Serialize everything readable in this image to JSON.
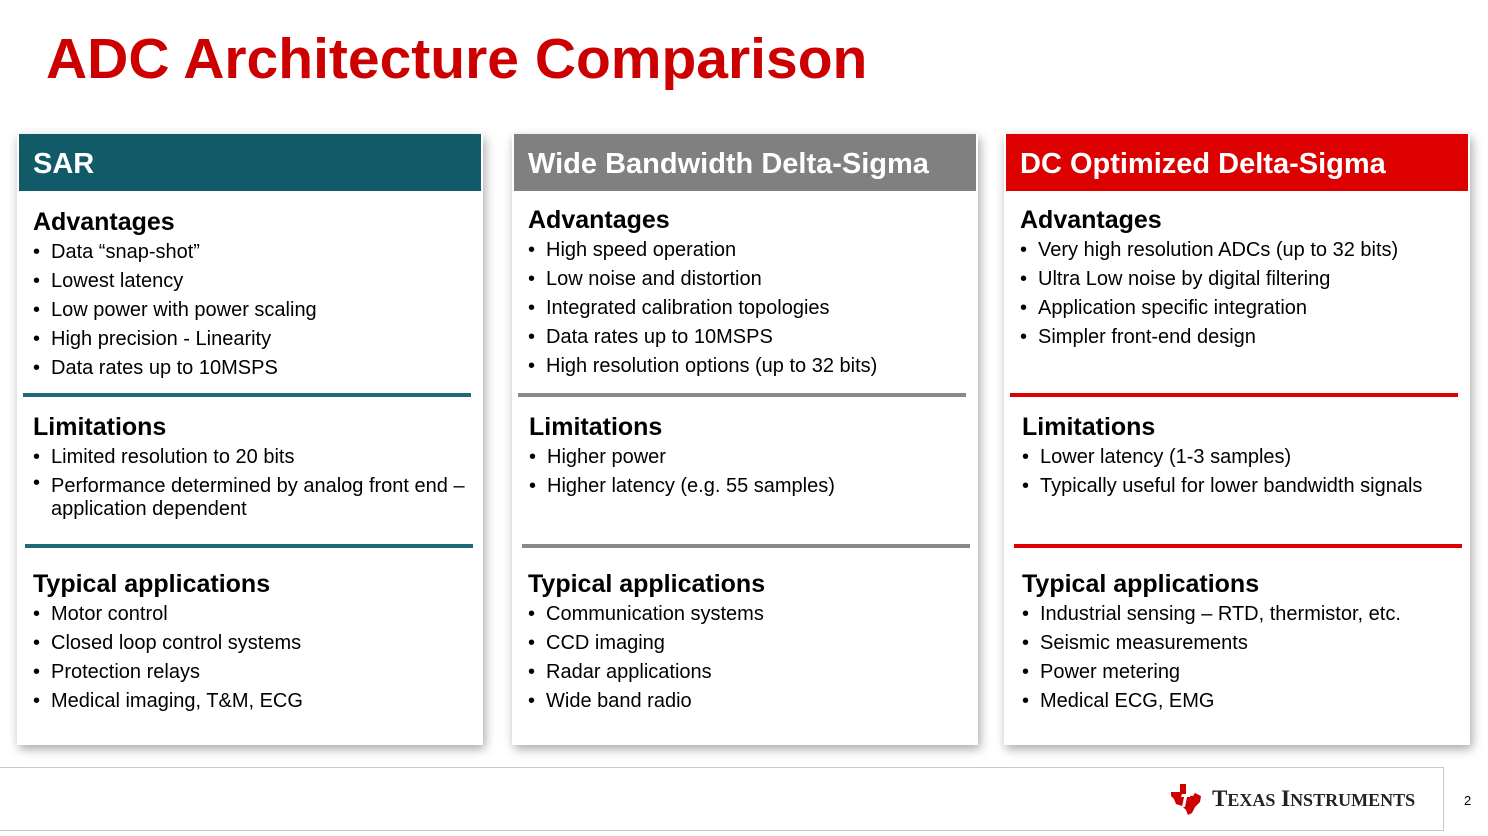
{
  "title": "ADC Architecture Comparison",
  "colors": {
    "title": "#cc0000",
    "sar": "#115b68",
    "wide": "#808080",
    "dc": "#dd0000"
  },
  "columns": [
    {
      "header": "SAR",
      "advantages": {
        "heading": "Advantages",
        "items": [
          "Data “snap-shot”",
          "Lowest latency",
          "Low power with power scaling",
          "High precision - Linearity",
          "Data rates up to 10MSPS"
        ]
      },
      "limitations": {
        "heading": "Limitations",
        "items": [
          "Limited resolution to 20 bits",
          "Performance determined by analog front end – application dependent"
        ]
      },
      "applications": {
        "heading": "Typical applications",
        "items": [
          "Motor control",
          "Closed loop control systems",
          "Protection relays",
          "Medical imaging, T&M, ECG"
        ]
      }
    },
    {
      "header": "Wide Bandwidth Delta-Sigma",
      "advantages": {
        "heading": "Advantages",
        "items": [
          "High speed operation",
          "Low noise and distortion",
          "Integrated calibration topologies",
          "Data rates up to 10MSPS",
          "High resolution options (up to 32 bits)"
        ]
      },
      "limitations": {
        "heading": "Limitations",
        "items": [
          "Higher power",
          "Higher latency (e.g. 55 samples)"
        ]
      },
      "applications": {
        "heading": "Typical applications",
        "items": [
          "Communication systems",
          "CCD imaging",
          "Radar applications",
          "Wide band radio"
        ]
      }
    },
    {
      "header": "DC Optimized Delta-Sigma",
      "advantages": {
        "heading": "Advantages",
        "items": [
          "Very high resolution ADCs (up to 32 bits)",
          "Ultra Low noise by digital filtering",
          "Application specific integration",
          "Simpler front-end design"
        ]
      },
      "limitations": {
        "heading": "Limitations",
        "items": [
          "Lower latency (1-3 samples)",
          "Typically useful for lower bandwidth signals"
        ]
      },
      "applications": {
        "heading": "Typical applications",
        "items": [
          "Industrial sensing – RTD, thermistor, etc.",
          "Seismic measurements",
          "Power metering",
          "Medical ECG, EMG"
        ]
      }
    }
  ],
  "footer": {
    "brand": "Texas Instruments",
    "logo_icon": "texas-state-logo-icon",
    "page_number": "2"
  }
}
